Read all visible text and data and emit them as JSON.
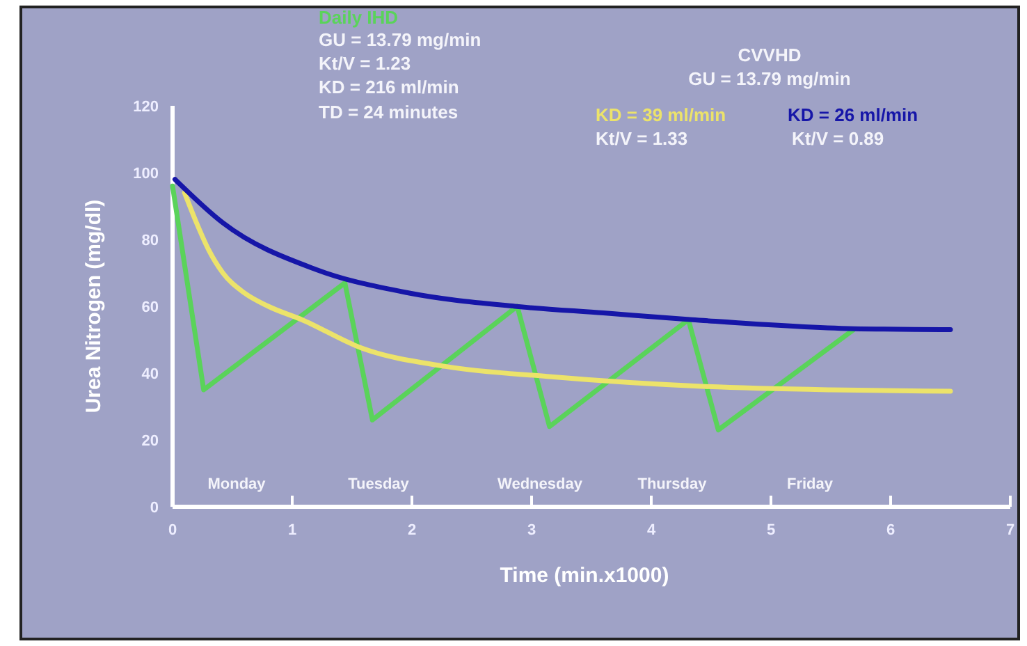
{
  "chart_data": {
    "type": "line",
    "xlabel": "Time (min.x1000)",
    "ylabel": "Urea Nitrogen (mg/dl)",
    "xlim": [
      0,
      7
    ],
    "xticks": [
      0,
      1,
      2,
      3,
      4,
      5,
      6,
      7
    ],
    "ylim": [
      0,
      120
    ],
    "yticks": [
      0,
      20,
      40,
      60,
      80,
      100,
      120
    ],
    "grid": false,
    "legend": false,
    "marker": "none",
    "line_style": "solid",
    "series": [
      {
        "name": "Daily IHD",
        "color": "#5ad35a",
        "x": [
          0,
          0.26,
          1.44,
          1.67,
          2.88,
          3.15,
          4.31,
          4.56,
          5.69
        ],
        "values": [
          96,
          35,
          67,
          26,
          60,
          24,
          56,
          23,
          53
        ]
      },
      {
        "name": "KD = 39 ml/min",
        "color": "#ece36a",
        "x": [
          0.1,
          0.2,
          0.3,
          0.42,
          0.6,
          0.8,
          1.08,
          1.58,
          2.28,
          3.13,
          4.45,
          5.5,
          6.5
        ],
        "values": [
          94,
          85,
          77,
          70,
          64,
          60,
          56,
          47.5,
          42,
          39,
          36,
          35,
          34.6
        ]
      },
      {
        "name": "KD = 26 ml/min",
        "color": "#1616a8",
        "x": [
          0.02,
          0.42,
          1.2,
          1.97,
          2.86,
          3.6,
          4.34,
          5.69,
          6.5
        ],
        "values": [
          98,
          85,
          71,
          64,
          60,
          58,
          56,
          53.3,
          53
        ]
      }
    ],
    "annotations": [
      "GU = 13.79 mg/min",
      "Kt/V = 1.23",
      "KD = 216 ml/min",
      "TD = 24 minutes",
      "CVVHD",
      "GU = 13.79 mg/min",
      "Kt/V = 1.33",
      "Kt/V = 0.89",
      "Monday",
      "Tuesday",
      "Wednesday",
      "Thursday",
      "Friday"
    ]
  }
}
